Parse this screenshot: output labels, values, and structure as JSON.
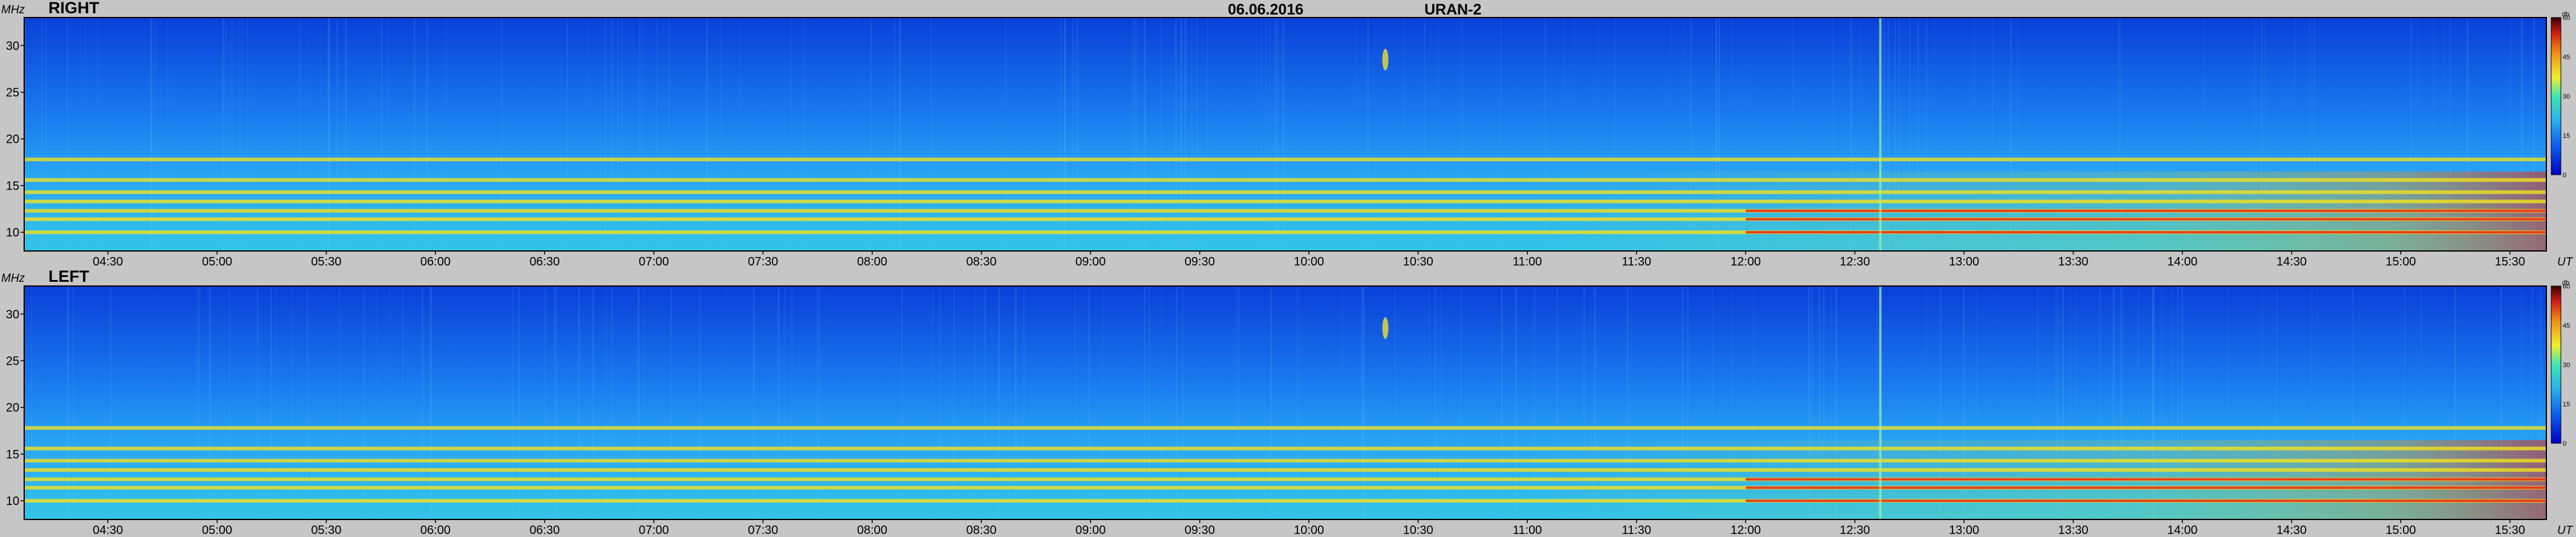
{
  "header": {
    "date": "06.06.2016",
    "instrument": "URAN-2"
  },
  "chart_data": [
    {
      "type": "heatmap",
      "title": "RIGHT",
      "ylabel": "MHz",
      "xlabel": "UT",
      "y_ticks": [
        "10",
        "15",
        "20",
        "25",
        "30"
      ],
      "x_ticks": [
        "04:30",
        "05:00",
        "05:30",
        "06:00",
        "06:30",
        "07:00",
        "07:30",
        "08:00",
        "08:30",
        "09:00",
        "09:30",
        "10:00",
        "10:30",
        "11:00",
        "11:30",
        "12:00",
        "12:30",
        "13:00",
        "13:30",
        "14:00",
        "14:30",
        "15:00",
        "15:30"
      ],
      "colorbar": {
        "unit": "db",
        "ticks": [
          "0",
          "15",
          "30",
          "45",
          "60"
        ],
        "range": [
          0,
          60
        ]
      },
      "xlim": [
        "04:07",
        "15:40"
      ],
      "ylim": [
        8,
        33
      ],
      "colors": {
        "background": "#0b4fe3",
        "mid": "#23a5f0",
        "band": "#f2e21e",
        "hot": "#e8231c"
      },
      "bands_mhz": [
        10.0,
        11.4,
        12.3,
        13.3,
        14.3,
        15.6,
        17.8
      ]
    },
    {
      "type": "heatmap",
      "title": "LEFT",
      "ylabel": "MHz",
      "xlabel": "UT",
      "y_ticks": [
        "10",
        "15",
        "20",
        "25",
        "30"
      ],
      "x_ticks": [
        "04:30",
        "05:00",
        "05:30",
        "06:00",
        "06:30",
        "07:00",
        "07:30",
        "08:00",
        "08:30",
        "09:00",
        "09:30",
        "10:00",
        "10:30",
        "11:00",
        "11:30",
        "12:00",
        "12:30",
        "13:00",
        "13:30",
        "14:00",
        "14:30",
        "15:00",
        "15:30"
      ],
      "colorbar": {
        "unit": "db",
        "ticks": [
          "0",
          "15",
          "30",
          "45",
          "60"
        ],
        "range": [
          0,
          60
        ]
      },
      "xlim": [
        "04:07",
        "15:40"
      ],
      "ylim": [
        8,
        33
      ],
      "colors": {
        "background": "#0b4fe3",
        "mid": "#23a5f0",
        "band": "#f2e21e",
        "hot": "#e8231c"
      },
      "bands_mhz": [
        10.0,
        11.4,
        12.3,
        13.3,
        14.3,
        15.6,
        17.8
      ]
    }
  ]
}
